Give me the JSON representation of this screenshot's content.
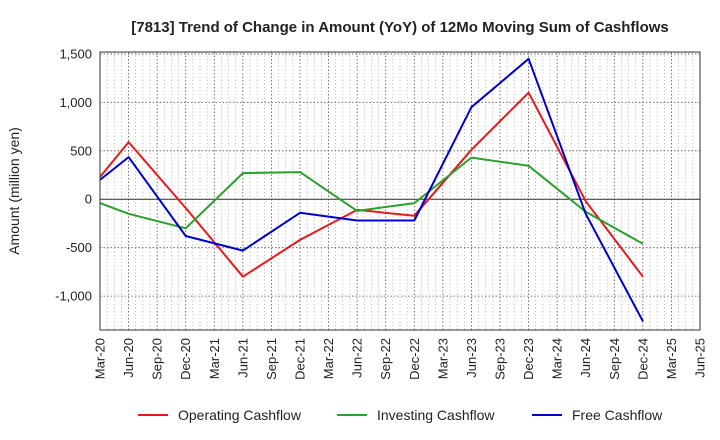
{
  "chart_data": {
    "type": "line",
    "title": "[7813]  Trend of Change in Amount (YoY) of 12Mo Moving Sum of Cashflows",
    "xlabel": "",
    "ylabel": "Amount (million yen)",
    "ylim": [
      -1350,
      1520
    ],
    "yticks": [
      1500,
      1000,
      500,
      0,
      -500,
      -1000
    ],
    "ytick_labels": [
      "1,500",
      "1,000",
      "500",
      "0",
      "-500",
      "-1,000"
    ],
    "categories": [
      "Mar-20",
      "Jun-20",
      "Sep-20",
      "Dec-20",
      "Mar-21",
      "Jun-21",
      "Sep-21",
      "Dec-21",
      "Mar-22",
      "Jun-22",
      "Sep-22",
      "Dec-22",
      "Mar-23",
      "Jun-23",
      "Sep-23",
      "Dec-23",
      "Mar-24",
      "Jun-24",
      "Sep-24",
      "Dec-24",
      "Mar-25",
      "Jun-25"
    ],
    "grid": true,
    "legend_position": "bottom",
    "series": [
      {
        "name": "Operating Cashflow",
        "color": "#e41a1c",
        "values": [
          230,
          590,
          null,
          -90,
          null,
          -800,
          null,
          -420,
          null,
          -110,
          null,
          -170,
          null,
          510,
          null,
          1100,
          null,
          -20,
          null,
          -800,
          null,
          null
        ]
      },
      {
        "name": "Investing Cashflow",
        "color": "#2ca02c",
        "values": [
          -40,
          -150,
          null,
          -300,
          null,
          270,
          null,
          280,
          null,
          -120,
          null,
          -40,
          null,
          430,
          null,
          345,
          null,
          -130,
          null,
          -460,
          null,
          null
        ]
      },
      {
        "name": "Free Cashflow",
        "color": "#0000cc",
        "values": [
          200,
          435,
          null,
          -380,
          null,
          -530,
          null,
          -140,
          null,
          -220,
          null,
          -220,
          null,
          950,
          null,
          1450,
          null,
          -150,
          null,
          -1260,
          null,
          null
        ]
      }
    ]
  }
}
